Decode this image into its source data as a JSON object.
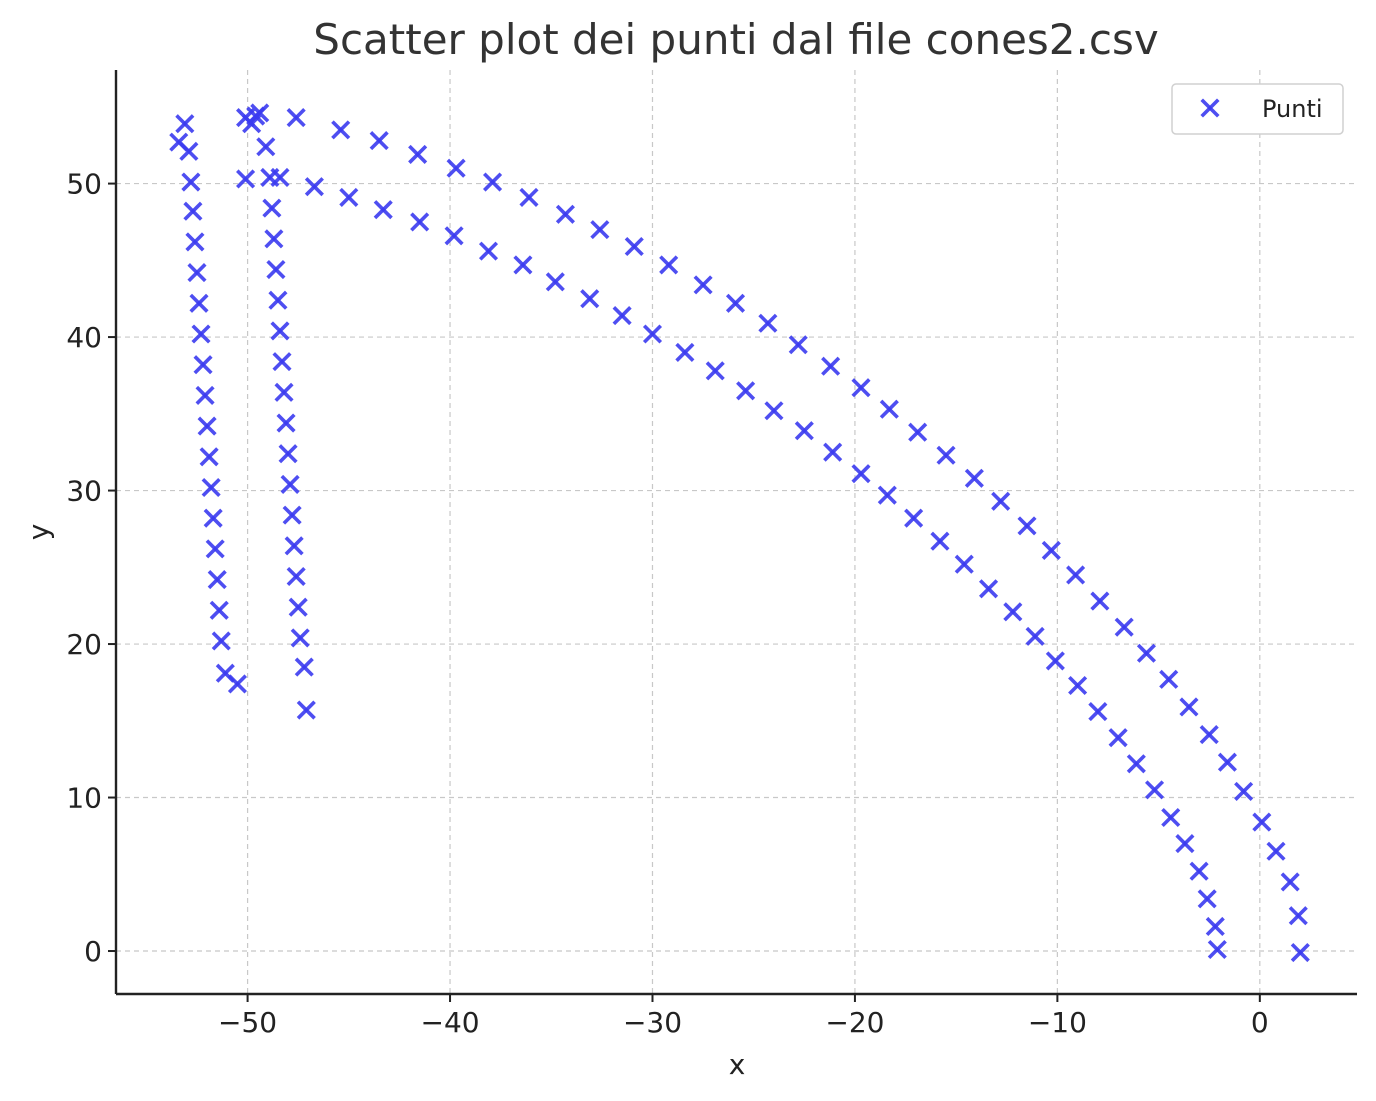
{
  "chart_data": {
    "type": "scatter",
    "title": "Scatter plot dei punti dal file cones2.csv",
    "xlabel": "x",
    "ylabel": "y",
    "xlim": [
      -56.5,
      4.8
    ],
    "ylim": [
      -2.8,
      57.4
    ],
    "xticks": [
      -50,
      -40,
      -30,
      -20,
      -10,
      0
    ],
    "yticks": [
      0,
      10,
      20,
      30,
      40,
      50
    ],
    "grid": true,
    "legend_position": "top-right",
    "marker": "x",
    "color": "#3b3bf0",
    "series": [
      {
        "name": "Punti",
        "points": [
          [
            -53.4,
            52.7
          ],
          [
            -53.1,
            53.9
          ],
          [
            -52.9,
            52.1
          ],
          [
            -52.8,
            50.1
          ],
          [
            -52.7,
            48.2
          ],
          [
            -52.6,
            46.2
          ],
          [
            -52.5,
            44.2
          ],
          [
            -52.4,
            42.2
          ],
          [
            -52.3,
            40.2
          ],
          [
            -52.2,
            38.2
          ],
          [
            -52.1,
            36.2
          ],
          [
            -52.0,
            34.2
          ],
          [
            -51.9,
            32.2
          ],
          [
            -51.8,
            30.2
          ],
          [
            -51.7,
            28.2
          ],
          [
            -51.6,
            26.2
          ],
          [
            -51.5,
            24.2
          ],
          [
            -51.4,
            22.2
          ],
          [
            -51.3,
            20.2
          ],
          [
            -51.1,
            18.1
          ],
          [
            -50.5,
            17.4
          ],
          [
            -50.1,
            54.3
          ],
          [
            -49.8,
            53.9
          ],
          [
            -49.6,
            54.4
          ],
          [
            -49.4,
            54.6
          ],
          [
            -49.1,
            52.4
          ],
          [
            -50.1,
            50.3
          ],
          [
            -48.9,
            50.4
          ],
          [
            -48.4,
            50.4
          ],
          [
            -48.8,
            48.4
          ],
          [
            -48.7,
            46.4
          ],
          [
            -48.6,
            44.4
          ],
          [
            -48.5,
            42.4
          ],
          [
            -48.4,
            40.4
          ],
          [
            -48.3,
            38.4
          ],
          [
            -48.2,
            36.4
          ],
          [
            -48.1,
            34.4
          ],
          [
            -48.0,
            32.4
          ],
          [
            -47.9,
            30.4
          ],
          [
            -47.8,
            28.4
          ],
          [
            -47.7,
            26.4
          ],
          [
            -47.6,
            24.4
          ],
          [
            -47.5,
            22.4
          ],
          [
            -47.4,
            20.4
          ],
          [
            -47.2,
            18.5
          ],
          [
            -47.1,
            15.7
          ],
          [
            -47.6,
            54.3
          ],
          [
            -45.4,
            53.5
          ],
          [
            -43.5,
            52.8
          ],
          [
            -41.6,
            51.9
          ],
          [
            -39.7,
            51.0
          ],
          [
            -37.9,
            50.1
          ],
          [
            -36.1,
            49.1
          ],
          [
            -34.3,
            48.0
          ],
          [
            -32.6,
            47.0
          ],
          [
            -30.9,
            45.9
          ],
          [
            -29.2,
            44.7
          ],
          [
            -27.5,
            43.4
          ],
          [
            -25.9,
            42.2
          ],
          [
            -24.3,
            40.9
          ],
          [
            -22.8,
            39.5
          ],
          [
            -21.2,
            38.1
          ],
          [
            -19.7,
            36.7
          ],
          [
            -18.3,
            35.3
          ],
          [
            -16.9,
            33.8
          ],
          [
            -15.5,
            32.3
          ],
          [
            -14.1,
            30.8
          ],
          [
            -12.8,
            29.3
          ],
          [
            -11.5,
            27.7
          ],
          [
            -10.3,
            26.1
          ],
          [
            -9.1,
            24.5
          ],
          [
            -7.9,
            22.8
          ],
          [
            -6.7,
            21.1
          ],
          [
            -5.6,
            19.4
          ],
          [
            -4.5,
            17.7
          ],
          [
            -3.5,
            15.9
          ],
          [
            -2.5,
            14.1
          ],
          [
            -1.6,
            12.3
          ],
          [
            -0.8,
            10.4
          ],
          [
            0.1,
            8.4
          ],
          [
            0.8,
            6.5
          ],
          [
            1.5,
            4.5
          ],
          [
            1.9,
            2.3
          ],
          [
            2.0,
            -0.1
          ],
          [
            -46.7,
            49.8
          ],
          [
            -45.0,
            49.1
          ],
          [
            -43.3,
            48.3
          ],
          [
            -41.5,
            47.5
          ],
          [
            -39.8,
            46.6
          ],
          [
            -38.1,
            45.6
          ],
          [
            -36.4,
            44.7
          ],
          [
            -34.8,
            43.6
          ],
          [
            -33.1,
            42.5
          ],
          [
            -31.5,
            41.4
          ],
          [
            -30.0,
            40.2
          ],
          [
            -28.4,
            39.0
          ],
          [
            -26.9,
            37.8
          ],
          [
            -25.4,
            36.5
          ],
          [
            -24.0,
            35.2
          ],
          [
            -22.5,
            33.9
          ],
          [
            -21.1,
            32.5
          ],
          [
            -19.7,
            31.1
          ],
          [
            -18.4,
            29.7
          ],
          [
            -17.1,
            28.2
          ],
          [
            -15.8,
            26.7
          ],
          [
            -14.6,
            25.2
          ],
          [
            -13.4,
            23.6
          ],
          [
            -12.2,
            22.1
          ],
          [
            -11.1,
            20.5
          ],
          [
            -10.1,
            18.9
          ],
          [
            -9.0,
            17.3
          ],
          [
            -8.0,
            15.6
          ],
          [
            -7.0,
            13.9
          ],
          [
            -6.1,
            12.2
          ],
          [
            -5.2,
            10.5
          ],
          [
            -4.4,
            8.7
          ],
          [
            -3.7,
            7.0
          ],
          [
            -3.0,
            5.2
          ],
          [
            -2.6,
            3.4
          ],
          [
            -2.2,
            1.6
          ],
          [
            -2.1,
            0.1
          ]
        ]
      }
    ]
  }
}
